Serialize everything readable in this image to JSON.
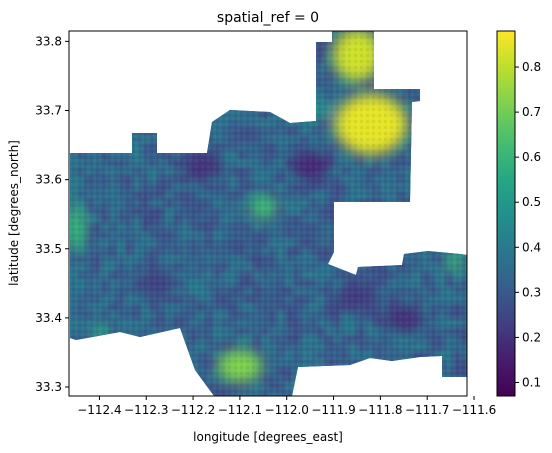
{
  "chart_data": {
    "type": "heatmap",
    "title": "spatial_ref = 0",
    "xlabel": "longitude [degrees_east]",
    "ylabel": "latitude [degrees_north]",
    "xlim": [
      -112.465,
      -111.615
    ],
    "ylim": [
      33.287,
      33.815
    ],
    "x_ticks": [
      -112.4,
      -112.3,
      -112.2,
      -112.1,
      -112.0,
      -111.9,
      -111.8,
      -111.7,
      -111.6
    ],
    "x_tick_labels": [
      "−112.4",
      "−112.3",
      "−112.2",
      "−112.1",
      "−112.0",
      "−111.9",
      "−111.8",
      "−111.7",
      "−111.6"
    ],
    "y_ticks": [
      33.3,
      33.4,
      33.5,
      33.6,
      33.7,
      33.8
    ],
    "y_tick_labels": [
      "33.3",
      "33.4",
      "33.5",
      "33.6",
      "33.7",
      "33.8"
    ],
    "colorbar": {
      "colormap": "viridis",
      "range": [
        0.07,
        0.88
      ],
      "ticks": [
        0.1,
        0.2,
        0.3,
        0.4,
        0.5,
        0.6,
        0.7,
        0.8
      ],
      "tick_labels": [
        "0.1",
        "0.2",
        "0.3",
        "0.4",
        "0.5",
        "0.6",
        "0.7",
        "0.8"
      ]
    },
    "grid": false,
    "hotspots": [
      {
        "lon": -111.82,
        "lat": 33.68,
        "value": 0.85
      },
      {
        "lon": -111.85,
        "lat": 33.78,
        "value": 0.82
      },
      {
        "lon": -112.1,
        "lat": 33.33,
        "value": 0.72
      },
      {
        "lon": -112.05,
        "lat": 33.56,
        "value": 0.62
      },
      {
        "lon": -112.45,
        "lat": 33.53,
        "value": 0.6
      },
      {
        "lon": -111.64,
        "lat": 33.48,
        "value": 0.6
      },
      {
        "lon": -112.4,
        "lat": 33.38,
        "value": 0.55
      },
      {
        "lon": -111.93,
        "lat": 33.7,
        "value": 0.5
      }
    ],
    "lowspots": [
      {
        "lon": -112.18,
        "lat": 33.62,
        "value": 0.2
      },
      {
        "lon": -111.95,
        "lat": 33.62,
        "value": 0.18
      },
      {
        "lon": -111.75,
        "lat": 33.4,
        "value": 0.2
      },
      {
        "lon": -111.85,
        "lat": 33.43,
        "value": 0.22
      },
      {
        "lon": -112.28,
        "lat": 33.45,
        "value": 0.24
      }
    ],
    "base_value": 0.33
  }
}
